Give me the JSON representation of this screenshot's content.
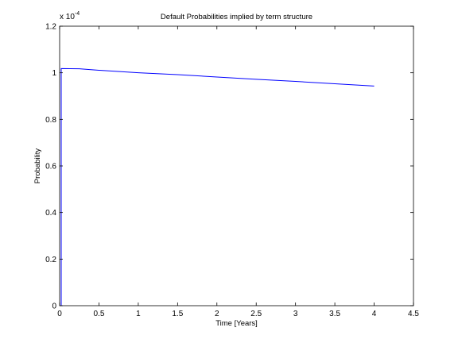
{
  "chart_data": {
    "type": "line",
    "title": "Default Probabilities implied by term structure",
    "xlabel": "Time [Years]",
    "ylabel": "Probability",
    "y_scale_label": "x 10",
    "y_scale_exponent": "-4",
    "xlim": [
      0,
      4.5
    ],
    "ylim": [
      0,
      1.2
    ],
    "x_ticks": [
      0,
      0.5,
      1,
      1.5,
      2,
      2.5,
      3,
      3.5,
      4,
      4.5
    ],
    "x_tick_labels": [
      "0",
      "0.5",
      "1",
      "1.5",
      "2",
      "2.5",
      "3",
      "3.5",
      "4",
      "4.5"
    ],
    "y_ticks": [
      0,
      0.2,
      0.4,
      0.6,
      0.8,
      1,
      1.2
    ],
    "y_tick_labels": [
      "0",
      "0.2",
      "0.4",
      "0.6",
      "0.8",
      "1",
      "1.2"
    ],
    "grid": false,
    "legend": "none",
    "series": [
      {
        "color": "#0000ff",
        "x": [
          0,
          0.02,
          0.02,
          0.25,
          0.5,
          1,
          1.5,
          2,
          2.5,
          3,
          3.5,
          4
        ],
        "y": [
          0,
          0,
          1.018,
          1.017,
          1.011,
          1.0,
          0.992,
          0.982,
          0.972,
          0.963,
          0.953,
          0.943
        ]
      }
    ]
  }
}
